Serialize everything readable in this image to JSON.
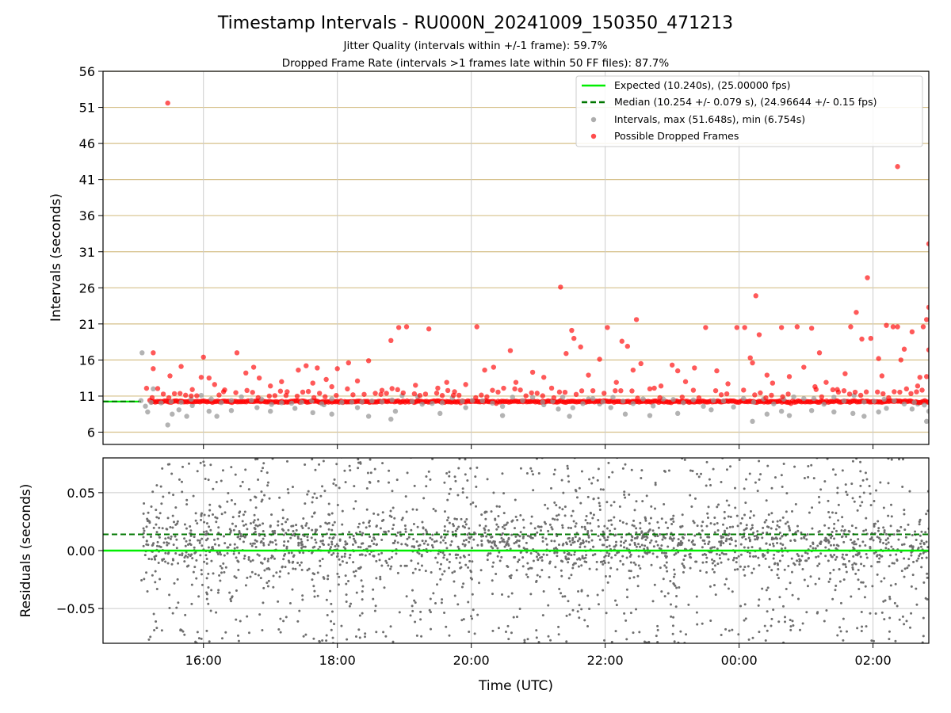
{
  "title": "Timestamp Intervals - RU000N_20241009_150350_471213",
  "subtitle1": "Jitter Quality (intervals within +/-1 frame): 59.7%",
  "subtitle2": "Dropped Frame Rate (intervals >1 frames late within 50 FF files): 87.7%",
  "colors": {
    "expected": "#00ee00",
    "median": "#007700",
    "intervals": "#999999",
    "dropped": "#ff0000",
    "residual": "#6e6e6e",
    "hgrid_top": "#d6c08a",
    "grid": "#cccccc"
  },
  "chart_data": [
    {
      "type": "scatter",
      "xlabel": "",
      "ylabel": "Intervals (seconds)",
      "xlim": [
        "14:30",
        "02:50"
      ],
      "ylim": [
        4.3,
        56
      ],
      "yticks": [
        6,
        11,
        16,
        21,
        26,
        31,
        36,
        41,
        46,
        51,
        56
      ],
      "ytick_labels": [
        "6",
        "11",
        "16",
        "21",
        "26",
        "31",
        "36",
        "41",
        "46",
        "51",
        "56"
      ],
      "xticks": [
        "16:00",
        "18:00",
        "20:00",
        "22:00",
        "00:00",
        "02:00"
      ],
      "grid": true,
      "legend_position": "top-right",
      "legend": [
        {
          "label": "Expected (10.240s), (25.00000 fps)",
          "style": "solid-line"
        },
        {
          "label": "Median (10.254 +/- 0.079 s), (24.96644 +/- 0.15 fps)",
          "style": "dashed-line"
        },
        {
          "label": "Intervals, max (51.648s), min (6.754s)",
          "style": "gray-dot"
        },
        {
          "label": "Possible Dropped Frames",
          "style": "red-dot"
        }
      ],
      "expected_interval": 10.24,
      "median_interval": 10.254,
      "series": [
        {
          "name": "Possible Dropped Frames",
          "points": [
            [
              "15:28",
              51.6
            ],
            [
              "15:15",
              17.0
            ],
            [
              "15:15",
              14.8
            ],
            [
              "15:30",
              13.8
            ],
            [
              "15:40",
              15.1
            ],
            [
              "15:50",
              11.9
            ],
            [
              "15:58",
              13.6
            ],
            [
              "16:00",
              16.4
            ],
            [
              "16:05",
              13.5
            ],
            [
              "16:10",
              12.6
            ],
            [
              "16:18",
              11.6
            ],
            [
              "16:30",
              17.0
            ],
            [
              "16:38",
              14.2
            ],
            [
              "16:45",
              15.0
            ],
            [
              "16:50",
              13.5
            ],
            [
              "17:00",
              12.4
            ],
            [
              "17:10",
              13.0
            ],
            [
              "17:15",
              11.6
            ],
            [
              "17:25",
              14.6
            ],
            [
              "17:32",
              15.2
            ],
            [
              "17:38",
              12.8
            ],
            [
              "17:42",
              14.9
            ],
            [
              "17:50",
              13.3
            ],
            [
              "17:55",
              12.3
            ],
            [
              "18:00",
              14.8
            ],
            [
              "18:10",
              15.6
            ],
            [
              "18:18",
              13.1
            ],
            [
              "18:28",
              15.9
            ],
            [
              "18:40",
              11.8
            ],
            [
              "18:48",
              18.7
            ],
            [
              "18:55",
              20.5
            ],
            [
              "19:02",
              20.6
            ],
            [
              "19:10",
              12.5
            ],
            [
              "19:22",
              20.3
            ],
            [
              "19:30",
              12.1
            ],
            [
              "19:38",
              12.9
            ],
            [
              "19:45",
              11.6
            ],
            [
              "19:55",
              12.6
            ],
            [
              "20:05",
              20.6
            ],
            [
              "20:12",
              14.6
            ],
            [
              "20:20",
              15.0
            ],
            [
              "20:35",
              17.3
            ],
            [
              "20:40",
              12.9
            ],
            [
              "20:55",
              14.3
            ],
            [
              "21:05",
              13.6
            ],
            [
              "21:12",
              12.1
            ],
            [
              "21:20",
              26.1
            ],
            [
              "21:25",
              16.9
            ],
            [
              "21:30",
              20.1
            ],
            [
              "21:32",
              19.0
            ],
            [
              "21:38",
              17.8
            ],
            [
              "21:45",
              13.9
            ],
            [
              "21:55",
              16.1
            ],
            [
              "22:02",
              20.5
            ],
            [
              "22:10",
              12.9
            ],
            [
              "22:15",
              18.6
            ],
            [
              "22:20",
              17.9
            ],
            [
              "22:25",
              14.6
            ],
            [
              "22:28",
              21.6
            ],
            [
              "22:32",
              15.5
            ],
            [
              "22:40",
              12.0
            ],
            [
              "22:50",
              12.4
            ],
            [
              "23:00",
              15.3
            ],
            [
              "23:05",
              14.5
            ],
            [
              "23:12",
              13.0
            ],
            [
              "23:20",
              14.9
            ],
            [
              "23:30",
              20.5
            ],
            [
              "23:40",
              14.5
            ],
            [
              "23:50",
              12.7
            ],
            [
              "23:58",
              20.5
            ],
            [
              "00:05",
              20.5
            ],
            [
              "00:10",
              16.3
            ],
            [
              "00:12",
              15.6
            ],
            [
              "00:15",
              24.9
            ],
            [
              "00:18",
              19.5
            ],
            [
              "00:25",
              13.9
            ],
            [
              "00:30",
              12.8
            ],
            [
              "00:38",
              20.5
            ],
            [
              "00:45",
              13.7
            ],
            [
              "00:52",
              20.6
            ],
            [
              "00:58",
              15.0
            ],
            [
              "01:05",
              20.4
            ],
            [
              "01:08",
              12.3
            ],
            [
              "01:12",
              17.0
            ],
            [
              "01:18",
              12.9
            ],
            [
              "01:28",
              11.9
            ],
            [
              "01:35",
              14.1
            ],
            [
              "01:40",
              20.6
            ],
            [
              "01:45",
              22.6
            ],
            [
              "01:50",
              18.9
            ],
            [
              "01:55",
              27.4
            ],
            [
              "01:58",
              19.0
            ],
            [
              "02:05",
              16.2
            ],
            [
              "02:08",
              13.8
            ],
            [
              "02:12",
              20.8
            ],
            [
              "02:18",
              20.6
            ],
            [
              "02:22",
              20.6
            ],
            [
              "02:25",
              16.0
            ],
            [
              "02:28",
              17.5
            ],
            [
              "02:22",
              42.8
            ],
            [
              "02:35",
              19.9
            ],
            [
              "02:42",
              13.6
            ],
            [
              "02:48",
              21.6
            ],
            [
              "02:50",
              32.1
            ],
            [
              "02:45",
              20.6
            ],
            [
              "02:50",
              17.4
            ],
            [
              "02:50",
              23.3
            ],
            [
              "02:48",
              13.7
            ],
            [
              "02:40",
              12.4
            ],
            [
              "02:30",
              12.0
            ]
          ]
        },
        {
          "name": "Intervals",
          "points": [
            [
              "15:05",
              17.0
            ],
            [
              "15:08",
              9.6
            ],
            [
              "15:10",
              8.8
            ],
            [
              "15:15",
              12.0
            ],
            [
              "15:28",
              7.0
            ],
            [
              "15:32",
              8.5
            ],
            [
              "15:38",
              9.1
            ],
            [
              "15:45",
              8.2
            ],
            [
              "15:50",
              9.7
            ],
            [
              "16:05",
              8.9
            ],
            [
              "16:12",
              8.2
            ],
            [
              "16:25",
              9.0
            ],
            [
              "16:48",
              9.4
            ],
            [
              "17:00",
              8.9
            ],
            [
              "17:22",
              9.3
            ],
            [
              "17:38",
              8.7
            ],
            [
              "17:48",
              9.8
            ],
            [
              "17:55",
              8.5
            ],
            [
              "18:18",
              9.4
            ],
            [
              "18:28",
              8.2
            ],
            [
              "18:48",
              7.8
            ],
            [
              "18:52",
              8.9
            ],
            [
              "19:12",
              10.9
            ],
            [
              "19:32",
              8.6
            ],
            [
              "19:55",
              9.4
            ],
            [
              "20:28",
              8.3
            ],
            [
              "21:05",
              9.8
            ],
            [
              "21:18",
              9.2
            ],
            [
              "21:28",
              8.2
            ],
            [
              "21:45",
              10.6
            ],
            [
              "21:55",
              9.9
            ],
            [
              "22:05",
              9.4
            ],
            [
              "22:18",
              8.5
            ],
            [
              "22:40",
              8.3
            ],
            [
              "23:05",
              8.6
            ],
            [
              "23:35",
              9.1
            ],
            [
              "00:12",
              7.5
            ],
            [
              "00:25",
              8.5
            ],
            [
              "00:38",
              8.9
            ],
            [
              "00:45",
              8.3
            ],
            [
              "01:05",
              9.0
            ],
            [
              "01:25",
              8.8
            ],
            [
              "01:42",
              8.6
            ],
            [
              "01:52",
              8.2
            ],
            [
              "02:05",
              8.8
            ],
            [
              "02:12",
              9.3
            ],
            [
              "02:35",
              9.2
            ],
            [
              "02:48",
              7.5
            ],
            [
              "02:50",
              8.9
            ],
            [
              "02:40",
              9.9
            ]
          ]
        }
      ]
    },
    {
      "type": "scatter",
      "xlabel": "Time (UTC)",
      "ylabel": "Residuals (seconds)",
      "xlim": [
        "14:30",
        "02:50"
      ],
      "ylim": [
        -0.08,
        0.08
      ],
      "yticks": [
        0.05,
        0.0,
        -0.05
      ],
      "ytick_labels": [
        "0.05",
        "0.00",
        "−0.05"
      ],
      "xticks": [
        "16:00",
        "18:00",
        "20:00",
        "22:00",
        "00:00",
        "02:00"
      ],
      "grid": true,
      "expected_residual": 0.0,
      "median_residual": 0.014,
      "series": [
        {
          "name": "Residuals",
          "x_range": [
            "15:04",
            "02:50"
          ],
          "y_range": [
            -0.08,
            0.08
          ],
          "count": 2600
        }
      ]
    }
  ]
}
